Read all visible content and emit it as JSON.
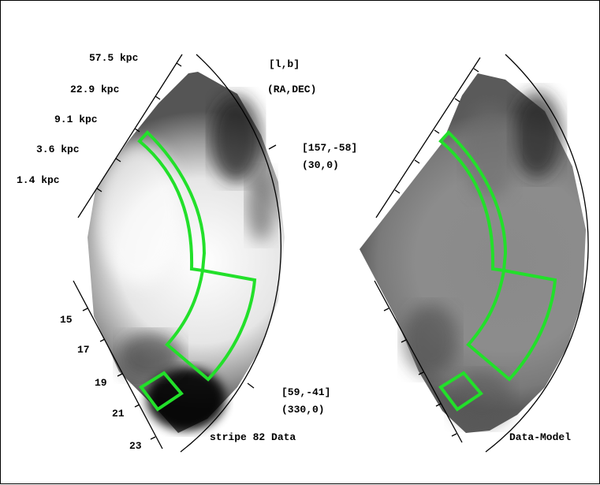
{
  "chart_data": {
    "type": "heatmap",
    "panels": [
      {
        "name": "stripe 82 Data",
        "label": "stripe 82 Data",
        "distance_ticks": [
          "57.5 kpc",
          "22.9 kpc",
          "9.1 kpc",
          "3.6 kpc",
          "1.4 kpc"
        ],
        "magnitude_ticks": [
          "15",
          "17",
          "19",
          "21",
          "23"
        ],
        "coordinate_labels": {
          "header_lb": "[l,b]",
          "header_radec": "(RA,DEC)",
          "top_lb": "[157,-58]",
          "top_radec": "(30,0)",
          "bottom_lb": "[59,-41]",
          "bottom_radec": "(330,0)"
        }
      },
      {
        "name": "Data-Model",
        "label": "Data-Model"
      }
    ],
    "colormap": "grayscale",
    "region_color": "#22e02a"
  }
}
